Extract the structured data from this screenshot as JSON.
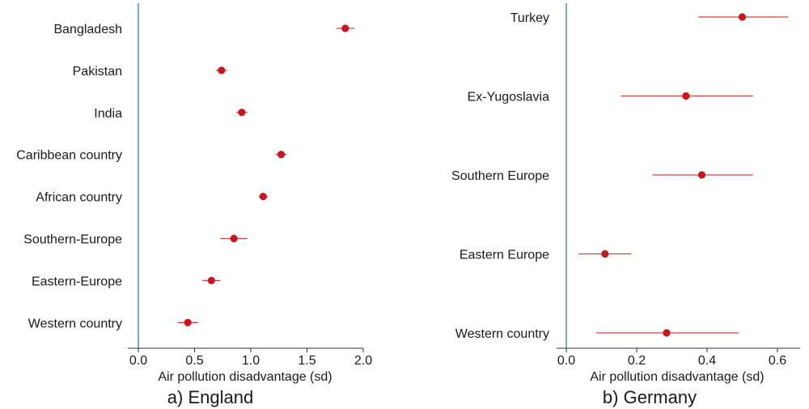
{
  "colors": {
    "point": "#c8161d",
    "errorbar": "#d24040",
    "zero_line": "#4c8fc9",
    "axis": "#333333"
  },
  "chart_data": [
    {
      "type": "scatter",
      "subtype": "dot-and-whisker",
      "title": "a) England",
      "xlabel": "Air pollution disadvantage (sd)",
      "xlim": [
        -0.1,
        2.0
      ],
      "xticks": [
        0.0,
        0.5,
        1.0,
        1.5,
        2.0
      ],
      "xtick_labels": [
        "0.0",
        "0.5",
        "1.0",
        "1.5",
        "2.0"
      ],
      "reference_line": 0.0,
      "categories": [
        "Bangladesh",
        "Pakistan",
        "India",
        "Caribbean country",
        "African country",
        "Southern-Europe",
        "Eastern-Europe",
        "Western country"
      ],
      "values": [
        1.84,
        0.74,
        0.92,
        1.27,
        1.11,
        0.85,
        0.65,
        0.44
      ],
      "ci_low": [
        1.76,
        0.69,
        0.87,
        1.22,
        1.07,
        0.73,
        0.57,
        0.35
      ],
      "ci_high": [
        1.92,
        0.79,
        0.97,
        1.32,
        1.15,
        0.97,
        0.73,
        0.53
      ]
    },
    {
      "type": "scatter",
      "subtype": "dot-and-whisker",
      "title": "b) Germany",
      "xlabel": "Air pollution disadvantage (sd)",
      "xlim": [
        -0.03,
        0.66
      ],
      "xticks": [
        0.0,
        0.2,
        0.4,
        0.6
      ],
      "xtick_labels": [
        "0.0",
        "0.2",
        "0.4",
        "0.6"
      ],
      "reference_line": 0.0,
      "categories": [
        "Turkey",
        "Ex-Yugoslavia",
        "Southern Europe",
        "Eastern Europe",
        "Western country"
      ],
      "values": [
        0.5,
        0.34,
        0.385,
        0.11,
        0.285
      ],
      "ci_low": [
        0.375,
        0.155,
        0.245,
        0.035,
        0.085
      ],
      "ci_high": [
        0.63,
        0.53,
        0.53,
        0.185,
        0.49
      ]
    }
  ]
}
